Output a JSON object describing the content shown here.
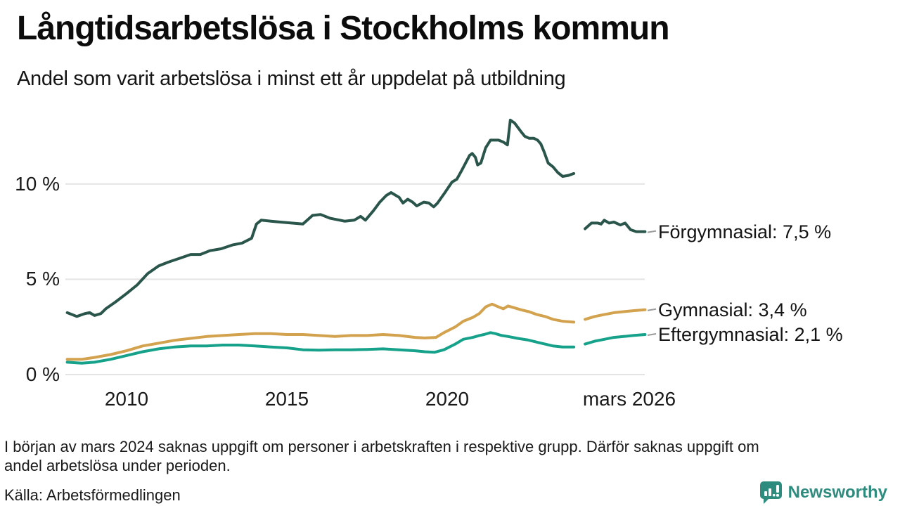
{
  "header": {
    "title": "Långtidsarbetslösa i Stockholms kommun",
    "subtitle": "Andel som varit arbetslösa i minst ett år uppdelat på utbildning"
  },
  "footnote": {
    "lines": [
      "I början av mars 2024 saknas uppgift om personer i arbetskraften i respektive grupp. Därför saknas uppgift om",
      "andel arbetslösa under perioden."
    ]
  },
  "source": "Källa: Arbetsförmedlingen",
  "branding": {
    "name": "Newsworthy",
    "color": "#2e8c7e",
    "icon": "bar-chart-speech-bubble-icon"
  },
  "chart_data": {
    "type": "line",
    "title": "Långtidsarbetslösa i Stockholms kommun",
    "subtitle": "Andel som varit arbetslösa i minst ett år uppdelat på utbildning",
    "unit": "percent",
    "grid": "horizontal",
    "legend_position": "right-of-line-ends",
    "x_range": [
      2008.1,
      2026.25
    ],
    "y_range": [
      0,
      13.8
    ],
    "data_gap": {
      "from": 2023.95,
      "to": 2024.3,
      "note": "uppgift saknas i början av mars 2024"
    },
    "yticks": [
      {
        "value": 0,
        "label": "0 %"
      },
      {
        "value": 5,
        "label": "5 %"
      },
      {
        "value": 10,
        "label": "10 %"
      }
    ],
    "xticks": [
      {
        "x": 2010,
        "label": "2010"
      },
      {
        "x": 2015,
        "label": "2015"
      },
      {
        "x": 2020,
        "label": "2020"
      },
      {
        "x": 2025.68,
        "label": "mars 2026"
      }
    ],
    "series": [
      {
        "id": "forgymnasial",
        "name": "Förgymnasial",
        "legend_label": "Förgymnasial: 7,5 %",
        "end_value": 7.5,
        "color": "#2a554a",
        "segments": [
          [
            [
              2008.15,
              3.25
            ],
            [
              2008.45,
              3.05
            ],
            [
              2008.7,
              3.2
            ],
            [
              2008.85,
              3.25
            ],
            [
              2009.0,
              3.1
            ],
            [
              2009.2,
              3.2
            ],
            [
              2009.35,
              3.45
            ],
            [
              2009.65,
              3.8
            ],
            [
              2010.0,
              4.25
            ],
            [
              2010.33,
              4.7
            ],
            [
              2010.66,
              5.3
            ],
            [
              2011.0,
              5.7
            ],
            [
              2011.3,
              5.9
            ],
            [
              2011.65,
              6.1
            ],
            [
              2012.0,
              6.3
            ],
            [
              2012.3,
              6.3
            ],
            [
              2012.6,
              6.5
            ],
            [
              2012.95,
              6.6
            ],
            [
              2013.3,
              6.8
            ],
            [
              2013.6,
              6.9
            ],
            [
              2013.9,
              7.15
            ],
            [
              2014.05,
              7.9
            ],
            [
              2014.2,
              8.1
            ],
            [
              2014.5,
              8.05
            ],
            [
              2014.8,
              8.0
            ],
            [
              2015.15,
              7.95
            ],
            [
              2015.5,
              7.9
            ],
            [
              2015.8,
              8.35
            ],
            [
              2016.05,
              8.4
            ],
            [
              2016.35,
              8.2
            ],
            [
              2016.8,
              8.05
            ],
            [
              2017.1,
              8.1
            ],
            [
              2017.3,
              8.3
            ],
            [
              2017.45,
              8.1
            ],
            [
              2017.7,
              8.6
            ],
            [
              2017.9,
              9.05
            ],
            [
              2018.1,
              9.4
            ],
            [
              2018.25,
              9.55
            ],
            [
              2018.5,
              9.3
            ],
            [
              2018.62,
              9.0
            ],
            [
              2018.77,
              9.2
            ],
            [
              2018.92,
              9.05
            ],
            [
              2019.05,
              8.85
            ],
            [
              2019.27,
              9.05
            ],
            [
              2019.43,
              9.0
            ],
            [
              2019.58,
              8.8
            ],
            [
              2019.7,
              9.0
            ],
            [
              2019.93,
              9.55
            ],
            [
              2020.15,
              10.1
            ],
            [
              2020.3,
              10.25
            ],
            [
              2020.45,
              10.7
            ],
            [
              2020.7,
              11.5
            ],
            [
              2020.78,
              11.6
            ],
            [
              2020.88,
              11.4
            ],
            [
              2020.95,
              11.0
            ],
            [
              2021.05,
              11.1
            ],
            [
              2021.2,
              11.9
            ],
            [
              2021.35,
              12.3
            ],
            [
              2021.6,
              12.3
            ],
            [
              2021.75,
              12.2
            ],
            [
              2021.88,
              12.05
            ],
            [
              2021.97,
              13.35
            ],
            [
              2022.1,
              13.2
            ],
            [
              2022.3,
              12.75
            ],
            [
              2022.42,
              12.5
            ],
            [
              2022.55,
              12.4
            ],
            [
              2022.7,
              12.4
            ],
            [
              2022.82,
              12.3
            ],
            [
              2022.92,
              12.1
            ],
            [
              2023.02,
              11.7
            ],
            [
              2023.15,
              11.1
            ],
            [
              2023.3,
              10.9
            ],
            [
              2023.45,
              10.6
            ],
            [
              2023.6,
              10.4
            ],
            [
              2023.78,
              10.45
            ],
            [
              2023.95,
              10.55
            ]
          ],
          [
            [
              2024.3,
              7.65
            ],
            [
              2024.5,
              7.95
            ],
            [
              2024.7,
              7.95
            ],
            [
              2024.8,
              7.9
            ],
            [
              2024.9,
              8.1
            ],
            [
              2025.05,
              7.95
            ],
            [
              2025.2,
              8.0
            ],
            [
              2025.4,
              7.85
            ],
            [
              2025.55,
              7.95
            ],
            [
              2025.72,
              7.6
            ],
            [
              2025.9,
              7.5
            ],
            [
              2026.17,
              7.5
            ]
          ]
        ]
      },
      {
        "id": "gymnasial",
        "name": "Gymnasial",
        "legend_label": "Gymnasial: 3,4 %",
        "end_value": 3.4,
        "color": "#d3a24e",
        "segments": [
          [
            [
              2008.15,
              0.8
            ],
            [
              2008.6,
              0.8
            ],
            [
              2009.0,
              0.9
            ],
            [
              2009.5,
              1.05
            ],
            [
              2010.0,
              1.25
            ],
            [
              2010.5,
              1.5
            ],
            [
              2011.0,
              1.65
            ],
            [
              2011.5,
              1.8
            ],
            [
              2012.0,
              1.9
            ],
            [
              2012.5,
              2.0
            ],
            [
              2013.0,
              2.05
            ],
            [
              2013.5,
              2.1
            ],
            [
              2014.0,
              2.15
            ],
            [
              2014.5,
              2.15
            ],
            [
              2015.0,
              2.1
            ],
            [
              2015.5,
              2.1
            ],
            [
              2016.0,
              2.05
            ],
            [
              2016.5,
              2.0
            ],
            [
              2017.0,
              2.05
            ],
            [
              2017.5,
              2.05
            ],
            [
              2018.0,
              2.1
            ],
            [
              2018.5,
              2.05
            ],
            [
              2019.0,
              1.95
            ],
            [
              2019.3,
              1.92
            ],
            [
              2019.65,
              1.95
            ],
            [
              2019.9,
              2.2
            ],
            [
              2020.25,
              2.5
            ],
            [
              2020.5,
              2.8
            ],
            [
              2020.8,
              3.0
            ],
            [
              2021.0,
              3.2
            ],
            [
              2021.2,
              3.55
            ],
            [
              2021.4,
              3.7
            ],
            [
              2021.6,
              3.55
            ],
            [
              2021.75,
              3.45
            ],
            [
              2021.9,
              3.6
            ],
            [
              2022.1,
              3.5
            ],
            [
              2022.3,
              3.4
            ],
            [
              2022.55,
              3.3
            ],
            [
              2022.8,
              3.15
            ],
            [
              2023.05,
              3.05
            ],
            [
              2023.3,
              2.9
            ],
            [
              2023.6,
              2.8
            ],
            [
              2023.95,
              2.75
            ]
          ],
          [
            [
              2024.3,
              2.9
            ],
            [
              2024.6,
              3.05
            ],
            [
              2024.9,
              3.15
            ],
            [
              2025.2,
              3.25
            ],
            [
              2025.5,
              3.3
            ],
            [
              2025.8,
              3.35
            ],
            [
              2026.17,
              3.4
            ]
          ]
        ]
      },
      {
        "id": "eftergymnasial",
        "name": "Eftergymnasial",
        "legend_label": "Eftergymnasial: 2,1 %",
        "end_value": 2.1,
        "color": "#16a28a",
        "segments": [
          [
            [
              2008.15,
              0.65
            ],
            [
              2008.6,
              0.6
            ],
            [
              2009.0,
              0.65
            ],
            [
              2009.5,
              0.8
            ],
            [
              2010.0,
              1.0
            ],
            [
              2010.5,
              1.2
            ],
            [
              2011.0,
              1.35
            ],
            [
              2011.5,
              1.45
            ],
            [
              2012.0,
              1.5
            ],
            [
              2012.5,
              1.5
            ],
            [
              2013.0,
              1.55
            ],
            [
              2013.5,
              1.55
            ],
            [
              2014.0,
              1.5
            ],
            [
              2014.5,
              1.45
            ],
            [
              2015.0,
              1.4
            ],
            [
              2015.5,
              1.3
            ],
            [
              2016.0,
              1.28
            ],
            [
              2016.5,
              1.3
            ],
            [
              2017.0,
              1.3
            ],
            [
              2017.5,
              1.32
            ],
            [
              2018.0,
              1.35
            ],
            [
              2018.5,
              1.3
            ],
            [
              2019.0,
              1.25
            ],
            [
              2019.3,
              1.2
            ],
            [
              2019.6,
              1.17
            ],
            [
              2019.9,
              1.3
            ],
            [
              2020.25,
              1.6
            ],
            [
              2020.5,
              1.85
            ],
            [
              2020.8,
              1.95
            ],
            [
              2021.0,
              2.05
            ],
            [
              2021.15,
              2.1
            ],
            [
              2021.35,
              2.2
            ],
            [
              2021.5,
              2.15
            ],
            [
              2021.7,
              2.05
            ],
            [
              2021.9,
              2.0
            ],
            [
              2022.2,
              1.9
            ],
            [
              2022.5,
              1.82
            ],
            [
              2022.8,
              1.7
            ],
            [
              2023.05,
              1.6
            ],
            [
              2023.3,
              1.5
            ],
            [
              2023.6,
              1.45
            ],
            [
              2023.95,
              1.45
            ]
          ],
          [
            [
              2024.3,
              1.6
            ],
            [
              2024.6,
              1.75
            ],
            [
              2024.9,
              1.85
            ],
            [
              2025.2,
              1.95
            ],
            [
              2025.5,
              2.0
            ],
            [
              2025.8,
              2.05
            ],
            [
              2026.17,
              2.1
            ]
          ]
        ]
      }
    ]
  }
}
